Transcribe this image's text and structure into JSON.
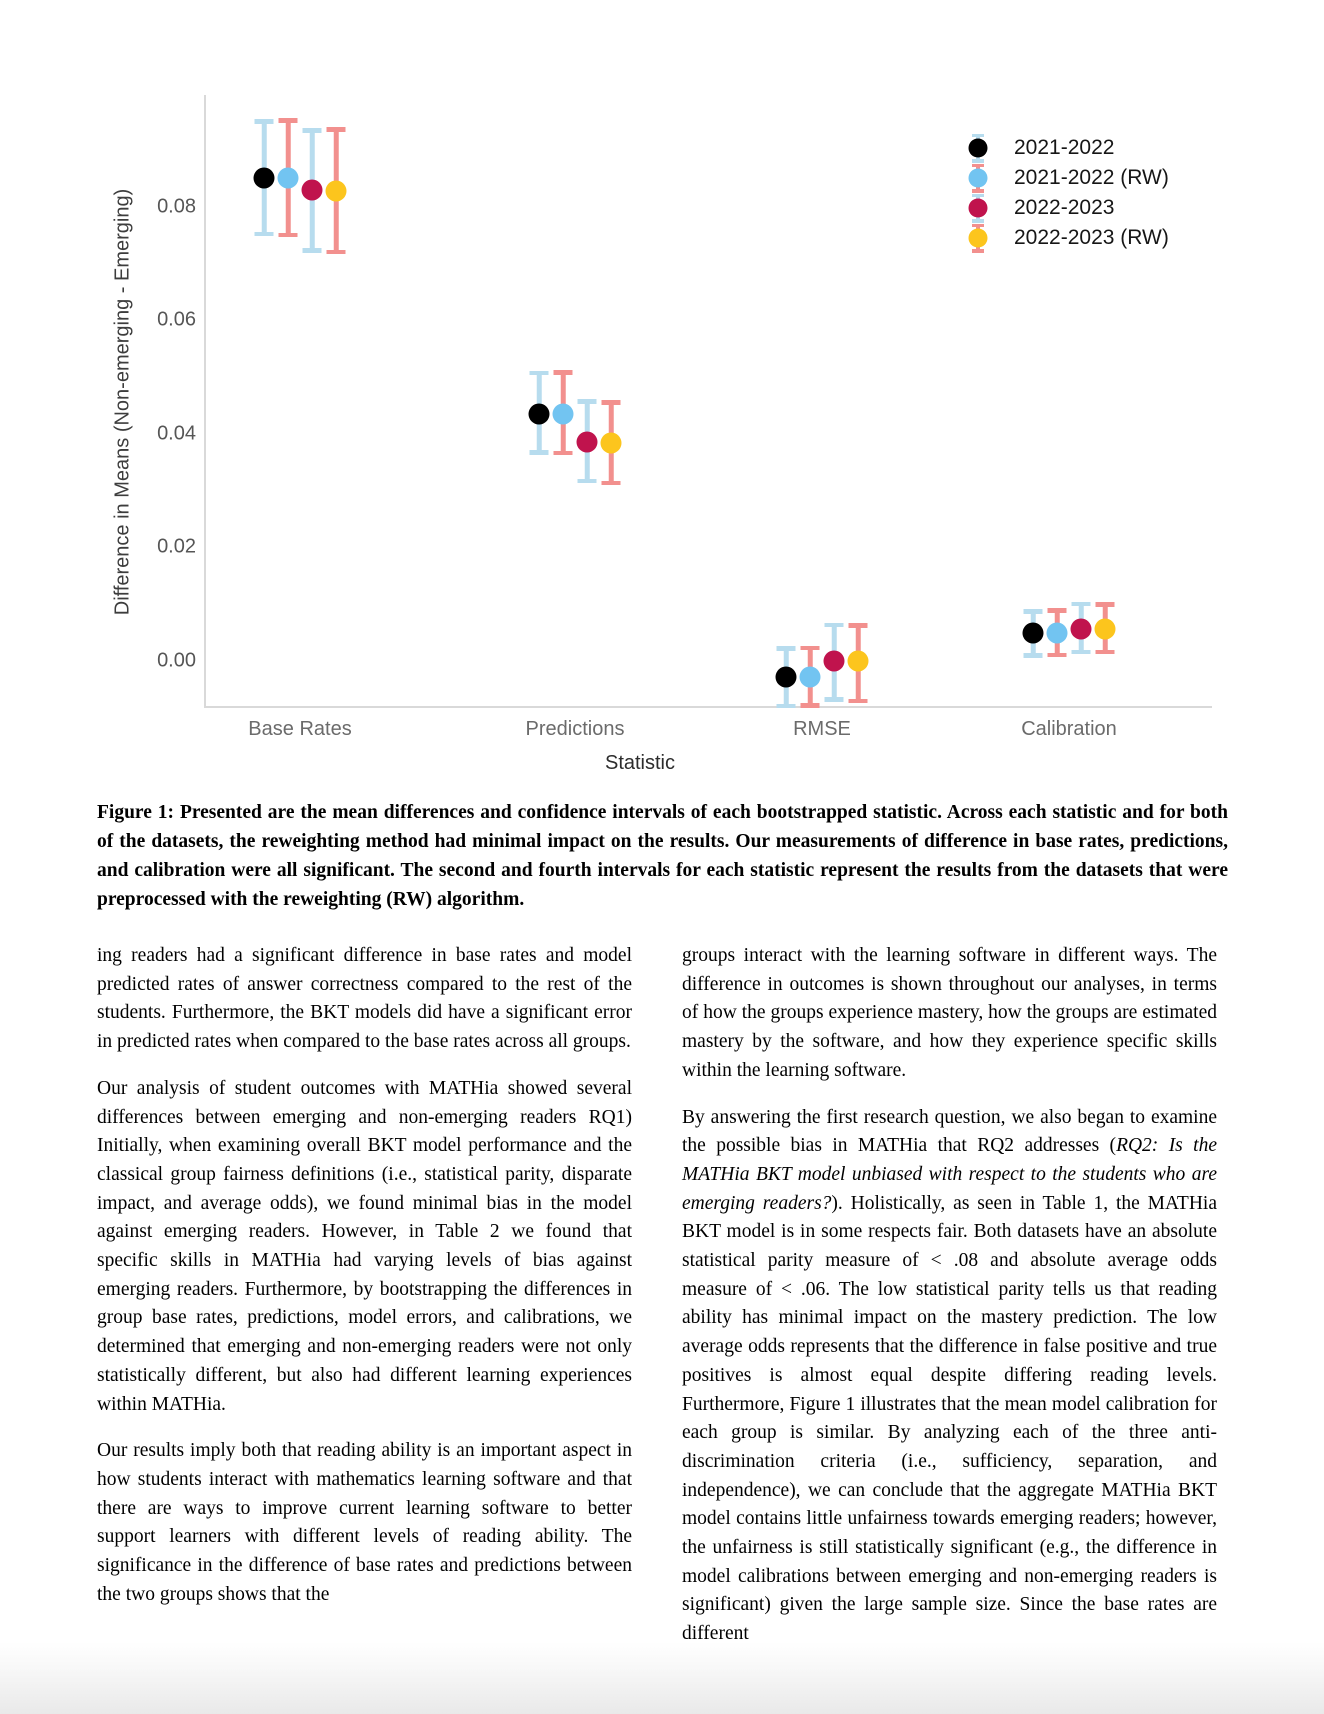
{
  "chart_data": {
    "type": "scatter",
    "title": "",
    "xlabel": "Statistic",
    "ylabel": "Difference in Means (Non-emerging - Emerging)",
    "categories": [
      "Base Rates",
      "Predictions",
      "RMSE",
      "Calibration"
    ],
    "yticks": [
      0.0,
      0.02,
      0.04,
      0.06,
      0.08
    ],
    "ylim": [
      -0.008,
      0.1
    ],
    "grid": false,
    "legend_position": "top-right",
    "series": [
      {
        "name": "2021-2022",
        "dot_color": "#000000",
        "bar_color": "#b7dcee",
        "means": [
          0.0851,
          0.0435,
          -0.0029,
          0.0048
        ],
        "ci_low": [
          0.0752,
          0.0367,
          -0.008,
          0.0009
        ],
        "ci_high": [
          0.095,
          0.0507,
          0.0021,
          0.0086
        ]
      },
      {
        "name": "2021-2022 (RW)",
        "dot_color": "#72c4f1",
        "bar_color": "#f2908e",
        "means": [
          0.0851,
          0.0435,
          -0.0029,
          0.0049
        ],
        "ci_low": [
          0.075,
          0.0366,
          -0.0079,
          0.001
        ],
        "ci_high": [
          0.0952,
          0.0508,
          0.0022,
          0.0088
        ]
      },
      {
        "name": "2022-2023",
        "dot_color": "#c0134d",
        "bar_color": "#b7dcee",
        "means": [
          0.0829,
          0.0385,
          0.0,
          0.0056
        ],
        "ci_low": [
          0.0723,
          0.0316,
          -0.0069,
          0.0015
        ],
        "ci_high": [
          0.0934,
          0.0457,
          0.0063,
          0.01
        ]
      },
      {
        "name": "2022-2023 (RW)",
        "dot_color": "#fcc51d",
        "bar_color": "#f2908e",
        "means": [
          0.0828,
          0.0383,
          -0.0001,
          0.0055
        ],
        "ci_low": [
          0.072,
          0.0313,
          -0.0071,
          0.0015
        ],
        "ci_high": [
          0.0936,
          0.0455,
          0.0062,
          0.0099
        ]
      }
    ]
  },
  "caption": {
    "text": "Figure 1: Presented are the mean differences and confidence intervals of each bootstrapped statistic. Across each statistic and for both of the datasets, the reweighting method had minimal impact on the results. Our measurements of difference in base rates, predictions, and calibration were all significant. The second and fourth intervals for each statistic represent the results from the datasets that were preprocessed with the reweighting (RW) algorithm."
  },
  "body": {
    "left_column": [
      [
        {
          "t": "ing readers had a significant difference in base rates and model predicted rates of answer correctness compared to the rest of the students. Furthermore, the BKT models did have a significant error in predicted rates when compared to the base rates across all groups."
        }
      ],
      [
        {
          "t": "Our analysis of student outcomes with MATHia showed several differences between emerging and non-emerging readers RQ1) Initially, when examining overall BKT model performance and the classical group fairness definitions (i.e., statistical parity, disparate impact, and average odds), we found minimal bias in the model against emerging readers. However, in Table 2 we found that specific skills in MATHia had varying levels of bias against emerging readers. Furthermore, by bootstrapping the differences in group base rates, predictions, model errors, and calibrations, we determined that emerging and non-emerging readers were not only statistically different, but also had different learning experiences within MATHia."
        }
      ],
      [
        {
          "t": "Our results imply both that reading ability is an important aspect in how students interact with mathematics learning software and that there are ways to improve current learning software to better support learners with different levels of reading ability. The significance in the difference of base rates and predictions between the two groups shows that the"
        }
      ]
    ],
    "right_column": [
      [
        {
          "t": "groups interact with the learning software in different ways. The difference in outcomes is shown throughout our analyses, in terms of how the groups experience mastery, how the groups are estimated mastery by the software, and how they experience specific skills within the learning software."
        }
      ],
      [
        {
          "t": "By answering the first research question, we also began to examine the possible bias in MATHia that RQ2 addresses ("
        },
        {
          "t": "RQ2: Is the MATHia BKT model unbiased with respect to the students who are emerging readers?",
          "i": true
        },
        {
          "t": "). Holistically, as seen in Table 1, the MATHia BKT model is in some respects fair. Both datasets have an absolute statistical parity measure of < .08 and absolute average odds measure of < .06. The low statistical parity tells us that reading ability has minimal impact on the mastery prediction. The low average odds represents that the difference in false positive and true positives is almost equal despite differing reading levels. Furthermore, Figure 1 illustrates that the mean model calibration for each group is similar. By analyzing each of the three anti-discrimination criteria (i.e., sufficiency, separation, and independence), we can conclude that the aggregate MATHia BKT model contains little unfairness towards emerging readers; however, the unfairness is still statistically significant (e.g., the difference in model calibrations between emerging and non-emerging readers is significant) given the large sample size. Since the base rates are different"
        }
      ]
    ]
  }
}
